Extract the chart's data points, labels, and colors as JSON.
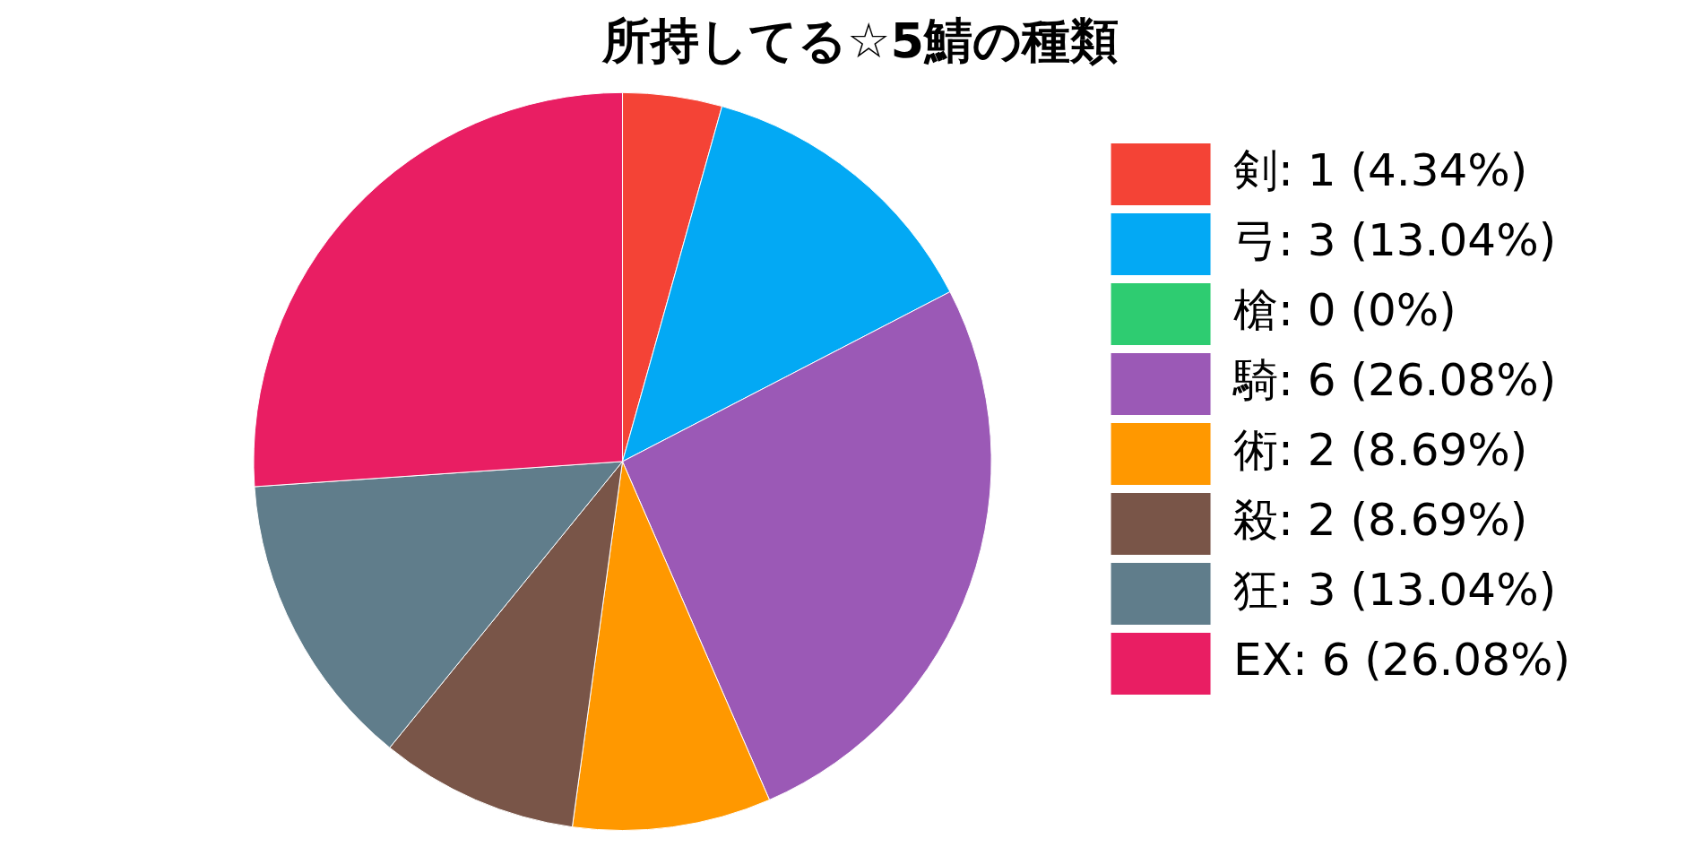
{
  "chart_data": {
    "type": "pie",
    "title": "所持してる☆5鯖の種類",
    "categories": [
      "剣: 1 (4.34%)",
      "弓: 3 (13.04%)",
      "槍: 0 (0%)",
      "騎: 6 (26.08%)",
      "術: 2 (8.69%)",
      "殺: 2 (8.69%)",
      "狂: 3 (13.04%)",
      "EX: 6 (26.08%)"
    ],
    "values": [
      1,
      3,
      0,
      6,
      2,
      2,
      3,
      6
    ],
    "colors": [
      "#f44336",
      "#03a9f4",
      "#2ecc71",
      "#9b59b6",
      "#ff9800",
      "#795548",
      "#607d8b",
      "#e91e63"
    ],
    "legend": "right"
  }
}
